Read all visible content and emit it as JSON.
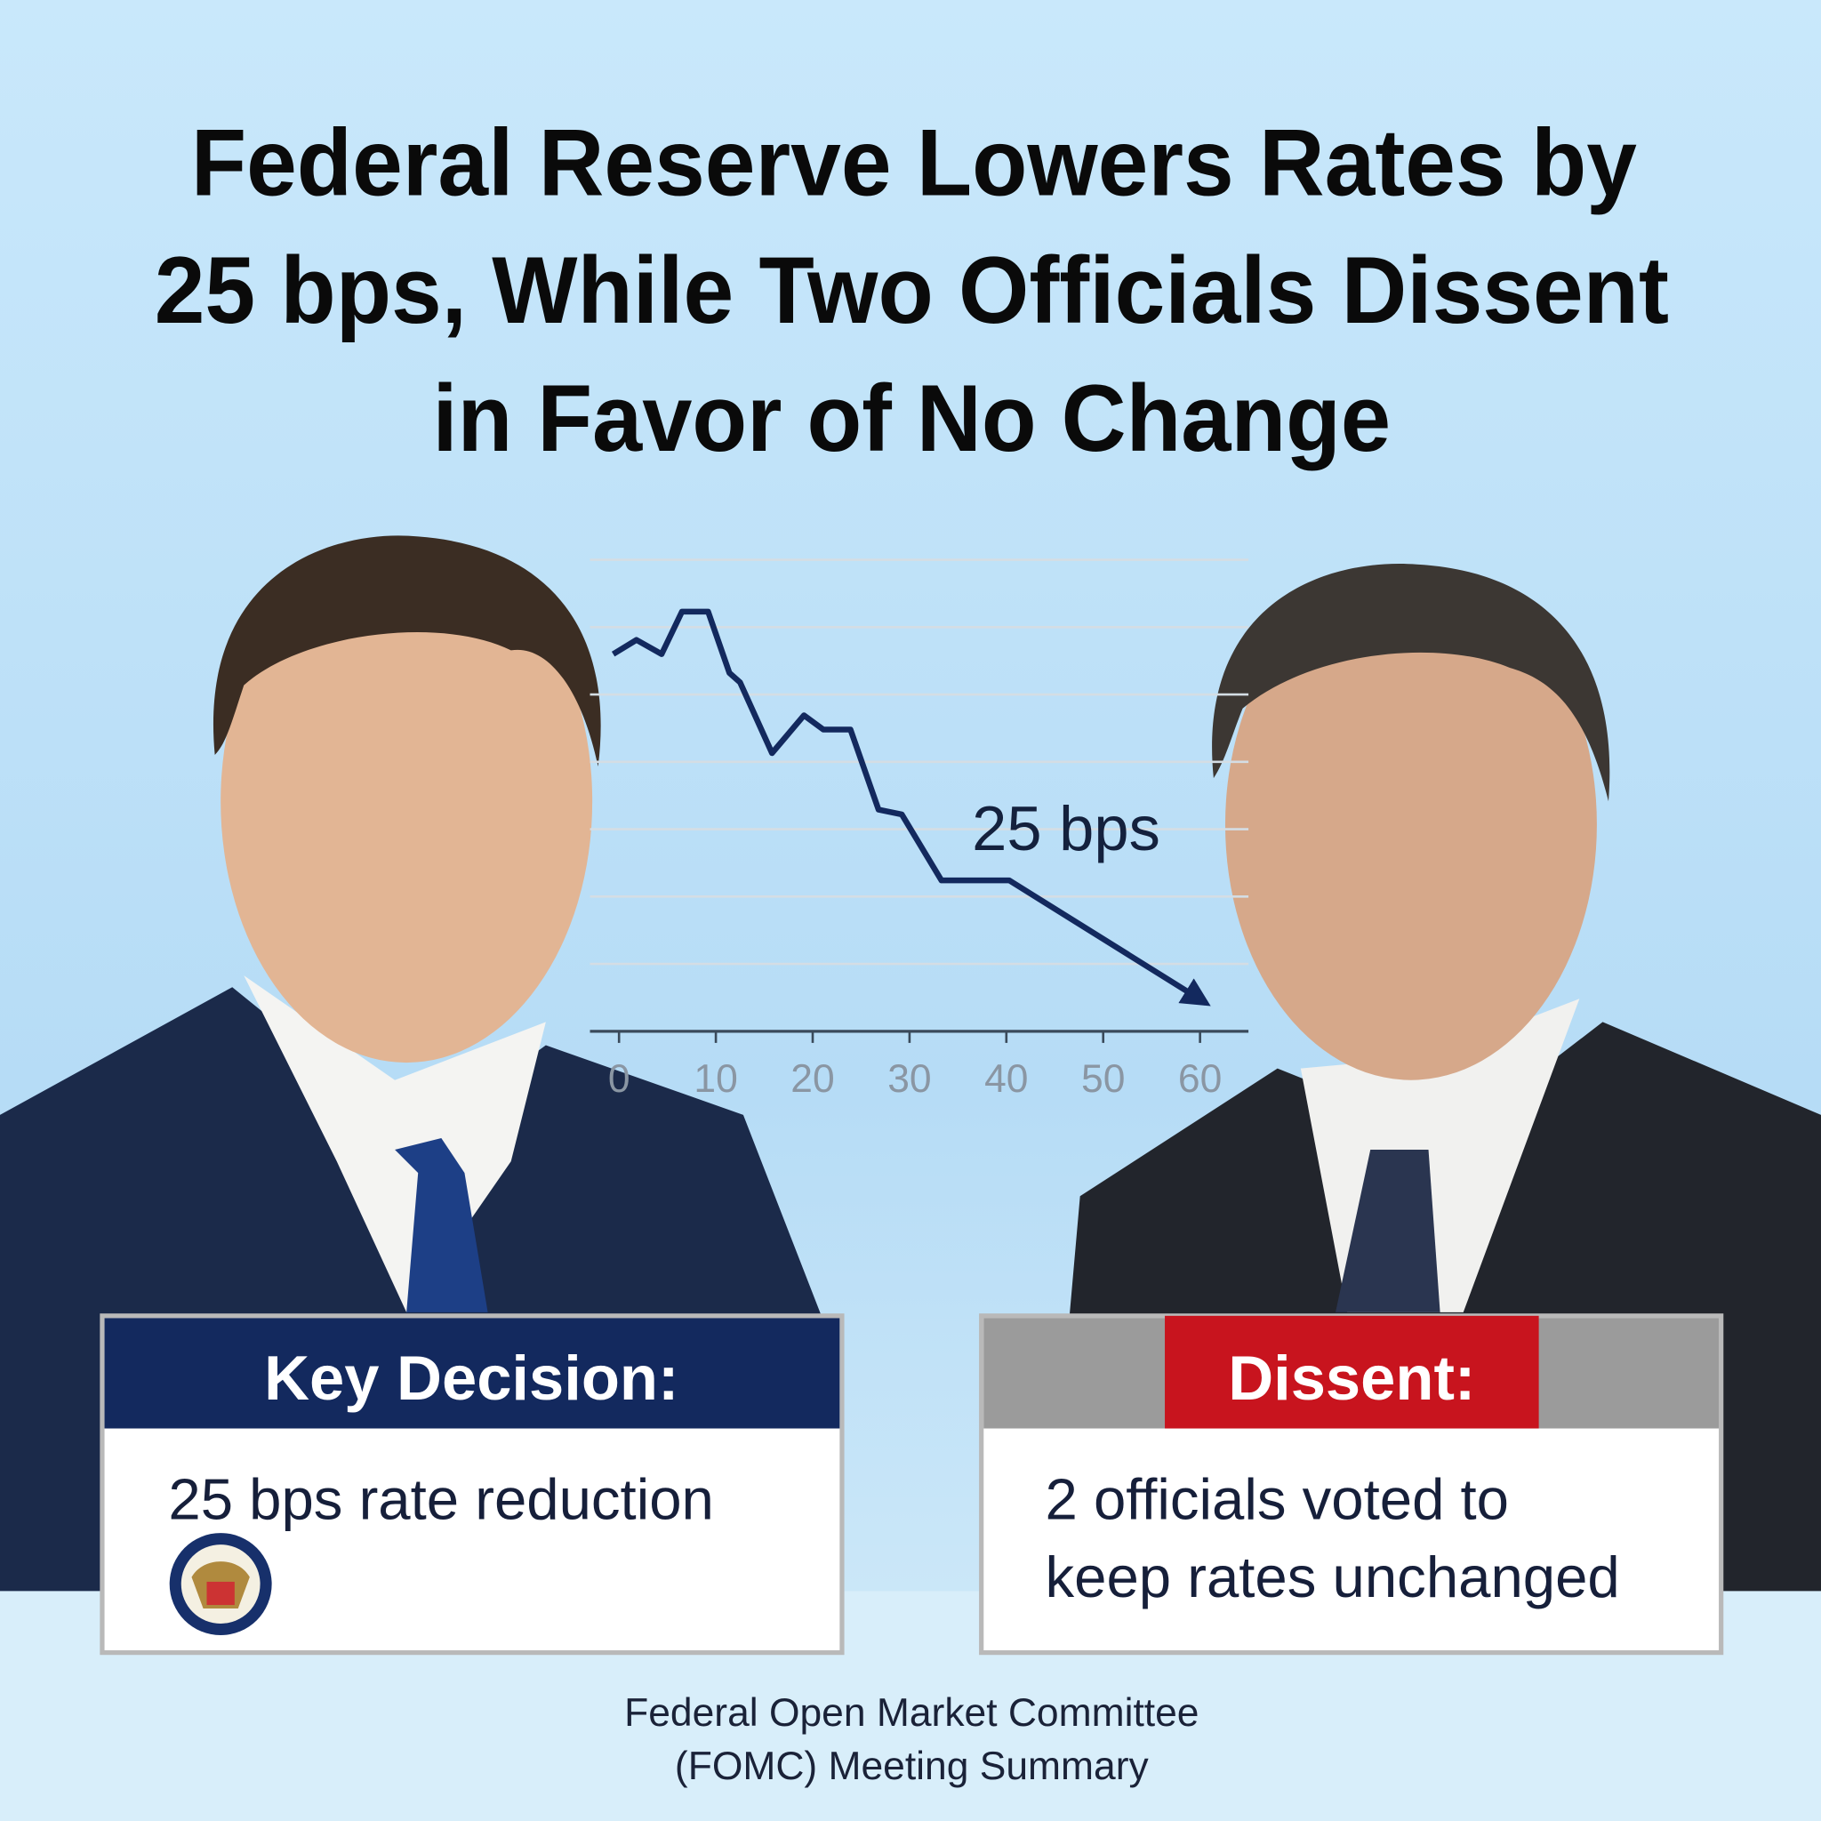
{
  "headline": [
    "Federal Reserve Lowers Rates by",
    "25 bps, While Two Officials Dissent",
    "in Favor of No Change"
  ],
  "chart_data": {
    "type": "line",
    "color": "#13295e",
    "grid": true,
    "x": [
      -0.6,
      1.8,
      4.4,
      6.5,
      9.2,
      11.4,
      12.5,
      15.8,
      19.1,
      21.1,
      23.9,
      26.8,
      29.2,
      33.3,
      40.3,
      60.6
    ],
    "values": [
      80,
      83,
      80,
      89,
      89,
      76,
      74,
      59,
      67,
      64,
      64,
      47,
      46,
      32,
      32,
      6
    ],
    "xlim": [
      -3,
      65
    ],
    "ylim": [
      0,
      100
    ],
    "xticks": [
      0,
      10,
      20,
      30,
      40,
      50,
      60
    ],
    "annotation": "25 bps"
  },
  "key_decision": {
    "heading": "Key Decision:",
    "text": "25 bps rate reduction"
  },
  "dissent": {
    "heading": "Dissent:",
    "lines": [
      "2 officials voted to",
      "keep rates unchanged"
    ]
  },
  "footer": [
    "Federal Open Market Committee",
    "(FOMC) Meeting Summary"
  ]
}
